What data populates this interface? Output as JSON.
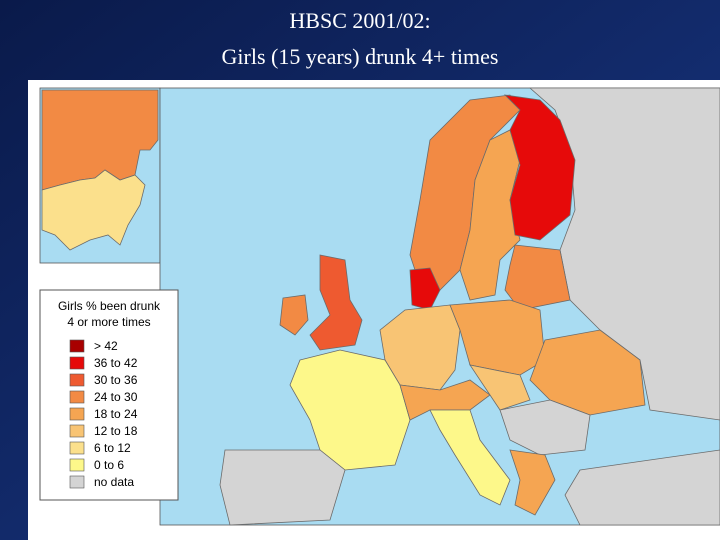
{
  "title": {
    "lines": [
      "HBSC 2001/02:",
      "Girls (15 years) drunk 4+ times"
    ]
  },
  "legend": {
    "title": [
      "Girls % been drunk",
      "4 or more times"
    ],
    "items": [
      {
        "label": "> 42",
        "color": "#a80000"
      },
      {
        "label": "36 to 42",
        "color": "#e60a0a"
      },
      {
        "label": "30 to 36",
        "color": "#ee5a30"
      },
      {
        "label": "24 to 30",
        "color": "#f28a44"
      },
      {
        "label": "18 to 24",
        "color": "#f5a552"
      },
      {
        "label": "12 to 18",
        "color": "#f8c474"
      },
      {
        "label": "6 to 12",
        "color": "#fbe08c"
      },
      {
        "label": "0 to 6",
        "color": "#fdf88a"
      },
      {
        "label": "no data",
        "color": "#d4d4d4"
      }
    ]
  }
}
